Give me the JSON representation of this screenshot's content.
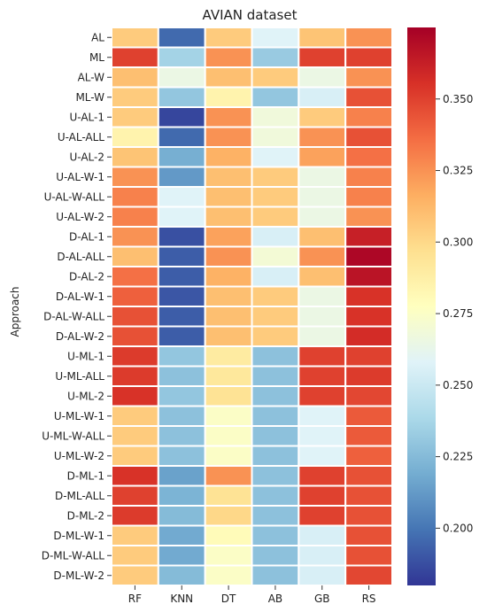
{
  "chart_data": {
    "type": "heatmap",
    "title": "AVIAN dataset",
    "ylabel": "Approach",
    "xlabel": "",
    "columns": [
      "RF",
      "KNN",
      "DT",
      "AB",
      "GB",
      "RS"
    ],
    "rows": [
      "AL",
      "ML",
      "AL-W",
      "ML-W",
      "U-AL-1",
      "U-AL-ALL",
      "U-AL-2",
      "U-AL-W-1",
      "U-AL-W-ALL",
      "U-AL-W-2",
      "D-AL-1",
      "D-AL-ALL",
      "D-AL-2",
      "D-AL-W-1",
      "D-AL-W-ALL",
      "D-AL-W-2",
      "U-ML-1",
      "U-ML-ALL",
      "U-ML-2",
      "U-ML-W-1",
      "U-ML-W-ALL",
      "U-ML-W-2",
      "D-ML-1",
      "D-ML-ALL",
      "D-ML-2",
      "D-ML-W-1",
      "D-ML-W-ALL",
      "D-ML-W-2"
    ],
    "values": [
      [
        0.305,
        0.196,
        0.305,
        0.258,
        0.308,
        0.325
      ],
      [
        0.35,
        0.236,
        0.325,
        0.232,
        0.35,
        0.35
      ],
      [
        0.31,
        0.265,
        0.31,
        0.305,
        0.265,
        0.325
      ],
      [
        0.305,
        0.23,
        0.285,
        0.23,
        0.255,
        0.345
      ],
      [
        0.305,
        0.185,
        0.325,
        0.268,
        0.305,
        0.33
      ],
      [
        0.285,
        0.196,
        0.325,
        0.268,
        0.325,
        0.345
      ],
      [
        0.308,
        0.22,
        0.315,
        0.258,
        0.32,
        0.335
      ],
      [
        0.325,
        0.212,
        0.31,
        0.305,
        0.265,
        0.33
      ],
      [
        0.33,
        0.258,
        0.31,
        0.305,
        0.265,
        0.33
      ],
      [
        0.33,
        0.258,
        0.31,
        0.305,
        0.265,
        0.325
      ],
      [
        0.325,
        0.188,
        0.32,
        0.255,
        0.31,
        0.362
      ],
      [
        0.31,
        0.192,
        0.325,
        0.27,
        0.325,
        0.372
      ],
      [
        0.335,
        0.192,
        0.315,
        0.255,
        0.31,
        0.367
      ],
      [
        0.34,
        0.19,
        0.31,
        0.305,
        0.265,
        0.355
      ],
      [
        0.345,
        0.192,
        0.31,
        0.305,
        0.265,
        0.355
      ],
      [
        0.345,
        0.192,
        0.31,
        0.305,
        0.265,
        0.357
      ],
      [
        0.352,
        0.23,
        0.29,
        0.228,
        0.35,
        0.35
      ],
      [
        0.352,
        0.228,
        0.292,
        0.228,
        0.35,
        0.352
      ],
      [
        0.355,
        0.23,
        0.295,
        0.228,
        0.35,
        0.348
      ],
      [
        0.305,
        0.228,
        0.275,
        0.228,
        0.258,
        0.342
      ],
      [
        0.305,
        0.228,
        0.275,
        0.228,
        0.258,
        0.342
      ],
      [
        0.305,
        0.228,
        0.275,
        0.228,
        0.258,
        0.34
      ],
      [
        0.355,
        0.215,
        0.325,
        0.228,
        0.35,
        0.345
      ],
      [
        0.35,
        0.222,
        0.295,
        0.228,
        0.35,
        0.345
      ],
      [
        0.352,
        0.225,
        0.3,
        0.228,
        0.35,
        0.345
      ],
      [
        0.305,
        0.218,
        0.28,
        0.228,
        0.255,
        0.345
      ],
      [
        0.305,
        0.218,
        0.275,
        0.228,
        0.255,
        0.345
      ],
      [
        0.305,
        0.225,
        0.275,
        0.228,
        0.255,
        0.348
      ]
    ],
    "colorbar": {
      "vmin": 0.18,
      "vmax": 0.375,
      "ticks": [
        0.2,
        0.225,
        0.25,
        0.275,
        0.3,
        0.325,
        0.35
      ],
      "tick_labels": [
        "0.200",
        "0.225",
        "0.250",
        "0.275",
        "0.300",
        "0.325",
        "0.350"
      ],
      "colormap": "RdYlBu_r"
    },
    "grid": false,
    "legend": "colorbar-right"
  }
}
